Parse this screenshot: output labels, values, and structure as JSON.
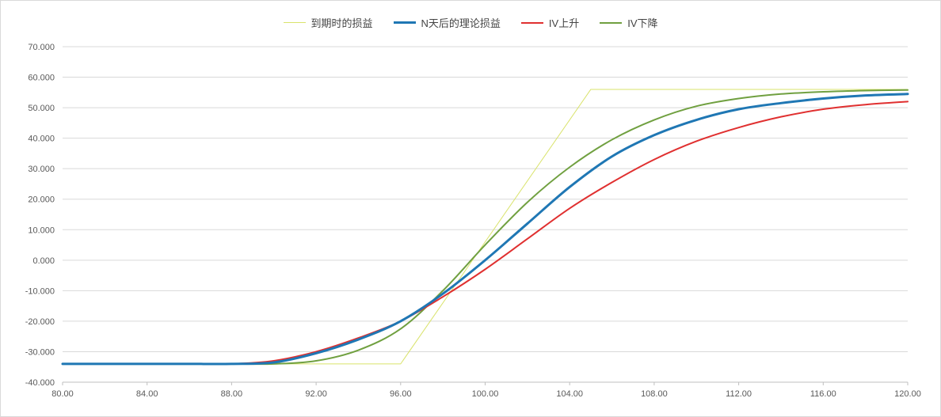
{
  "chart_data": {
    "type": "line",
    "title": "",
    "xlabel": "",
    "ylabel": "",
    "xlim": [
      80,
      120
    ],
    "ylim": [
      -40,
      70
    ],
    "x_ticks": [
      "80.00",
      "84.00",
      "88.00",
      "92.00",
      "96.00",
      "100.00",
      "104.00",
      "108.00",
      "112.00",
      "116.00",
      "120.00"
    ],
    "y_ticks": [
      "70.000",
      "60.000",
      "50.000",
      "40.000",
      "30.000",
      "20.000",
      "10.000",
      "0.000",
      "-10.000",
      "-20.000",
      "-30.000",
      "-40.000"
    ],
    "grid": "horizontal",
    "legend_position": "top",
    "x": [
      80,
      82,
      84,
      86,
      88,
      90,
      92,
      94,
      96,
      98,
      100,
      102,
      104,
      106,
      108,
      110,
      112,
      114,
      116,
      118,
      120
    ],
    "series": [
      {
        "name": "到期时的损益",
        "color": "#d9e36b",
        "line_weight": "thin",
        "x": [
          80,
          96,
          105,
          120
        ],
        "values": [
          -34,
          -34,
          56,
          56
        ]
      },
      {
        "name": "N天后的理论损益",
        "color": "#1f77b4",
        "line_weight": "thick",
        "values": [
          -34,
          -34,
          -34,
          -34,
          -34,
          -33.5,
          -30.5,
          -26,
          -20,
          -11,
          0,
          12,
          24,
          34,
          41,
          46,
          49.5,
          51.5,
          53,
          54,
          54.5
        ]
      },
      {
        "name": "IV上升",
        "color": "#e03030",
        "line_weight": "medium",
        "values": [
          -34,
          -34,
          -34,
          -34,
          -34,
          -33,
          -30,
          -25.5,
          -20,
          -12,
          -3,
          7,
          17,
          25.5,
          33,
          39,
          43.5,
          47,
          49.5,
          51,
          52
        ]
      },
      {
        "name": "IV下降",
        "color": "#70a040",
        "line_weight": "medium",
        "values": [
          -34,
          -34,
          -34,
          -34,
          -34,
          -34,
          -33,
          -29.5,
          -22.5,
          -10,
          5,
          19,
          30.5,
          39.5,
          46,
          50.5,
          53,
          54.5,
          55.2,
          55.6,
          55.8
        ]
      }
    ]
  }
}
